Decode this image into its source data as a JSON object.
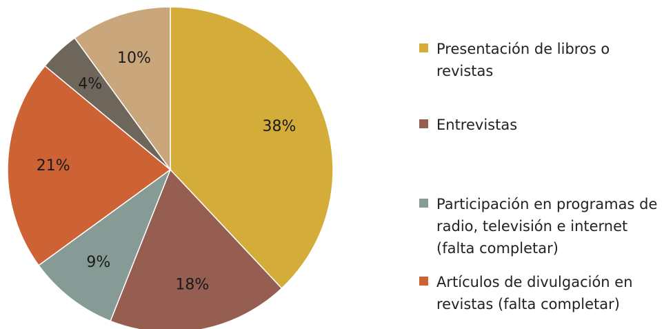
{
  "chart_data": {
    "type": "pie",
    "title": "",
    "start_angle_deg": 0,
    "direction": "clockwise",
    "legend_position": "right",
    "slices": [
      {
        "label": "Presentación de libros o revistas",
        "value": 38,
        "display": "38%",
        "color": "#d3ac3a"
      },
      {
        "label": "Entrevistas",
        "value": 18,
        "display": "18%",
        "color": "#955e51"
      },
      {
        "label": "Participación en programas de radio, televisión e internet (falta completar)",
        "value": 9,
        "display": "9%",
        "color": "#879b96"
      },
      {
        "label": "Artículos de divulgación en revistas (falta completar)",
        "value": 21,
        "display": "21%",
        "color": "#cd6234"
      },
      {
        "label": "",
        "value": 4,
        "display": "4%",
        "color": "#6f665b"
      },
      {
        "label": "",
        "value": 10,
        "display": "10%",
        "color": "#c9a67b"
      }
    ]
  }
}
